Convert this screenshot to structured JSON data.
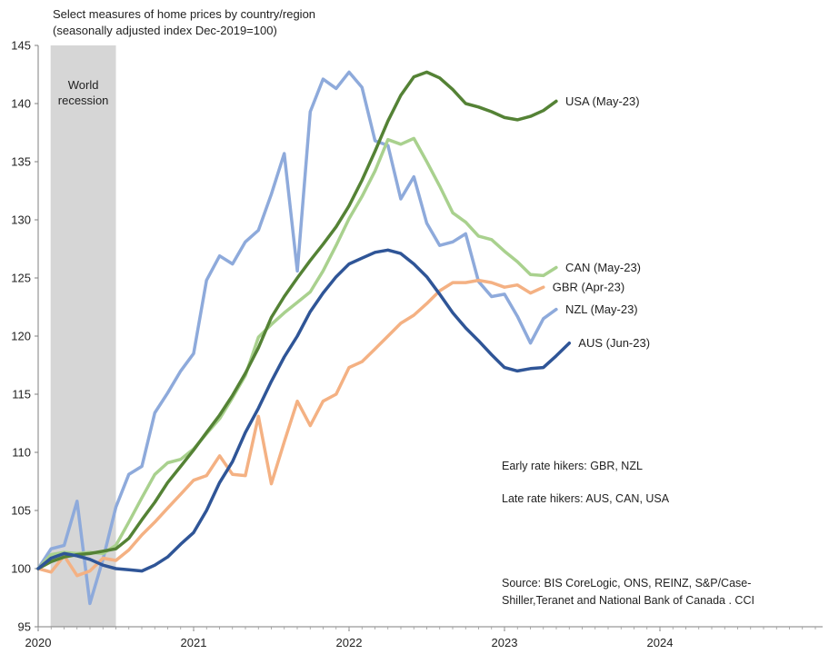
{
  "chart_data": {
    "type": "line",
    "title": "Select measures of home prices by country/region",
    "subtitle": "(seasonally adjusted index Dec-2019=100)",
    "xlabel": "",
    "ylabel": "",
    "xlim": [
      2020,
      2025
    ],
    "ylim": [
      95,
      145
    ],
    "y_ticks": [
      95,
      100,
      105,
      110,
      115,
      120,
      125,
      130,
      135,
      140,
      145
    ],
    "x_ticks": [
      {
        "value": 2020,
        "label": "2020"
      },
      {
        "value": 2021,
        "label": "2021"
      },
      {
        "value": 2022,
        "label": "2022"
      },
      {
        "value": 2023,
        "label": "2023"
      },
      {
        "value": 2024,
        "label": "2024"
      }
    ],
    "shaded_region": {
      "label_line1": "World",
      "label_line2": "recession",
      "x_start": 2020.08,
      "x_end": 2020.5,
      "color": "#d6d6d6"
    },
    "series": [
      {
        "name": "NZL (May-23)",
        "color": "#8eaadb",
        "x": [
          2020.0,
          2020.083,
          2020.167,
          2020.25,
          2020.333,
          2020.417,
          2020.5,
          2020.583,
          2020.667,
          2020.75,
          2020.833,
          2020.917,
          2021.0,
          2021.083,
          2021.167,
          2021.25,
          2021.333,
          2021.417,
          2021.5,
          2021.583,
          2021.667,
          2021.75,
          2021.833,
          2021.917,
          2022.0,
          2022.083,
          2022.167,
          2022.25,
          2022.333,
          2022.417,
          2022.5,
          2022.583,
          2022.667,
          2022.75,
          2022.833,
          2022.917,
          2023.0,
          2023.083,
          2023.167,
          2023.25,
          2023.333
        ],
        "values": [
          100.0,
          101.7,
          102.0,
          105.8,
          97.0,
          100.8,
          105.3,
          108.1,
          108.8,
          113.4,
          115.1,
          117.0,
          118.5,
          124.8,
          126.9,
          126.2,
          128.1,
          129.1,
          132.2,
          135.7,
          125.6,
          139.3,
          142.1,
          141.3,
          142.7,
          141.4,
          136.8,
          136.4,
          131.8,
          133.7,
          129.7,
          127.8,
          128.1,
          128.8,
          124.7,
          123.4,
          123.6,
          121.7,
          119.4,
          121.5,
          122.3
        ]
      },
      {
        "name": "GBR (Apr-23)",
        "color": "#f4b183",
        "x": [
          2020.0,
          2020.083,
          2020.167,
          2020.25,
          2020.333,
          2020.417,
          2020.5,
          2020.583,
          2020.667,
          2020.75,
          2020.833,
          2020.917,
          2021.0,
          2021.083,
          2021.167,
          2021.25,
          2021.333,
          2021.417,
          2021.5,
          2021.583,
          2021.667,
          2021.75,
          2021.833,
          2021.917,
          2022.0,
          2022.083,
          2022.167,
          2022.25,
          2022.333,
          2022.417,
          2022.5,
          2022.583,
          2022.667,
          2022.75,
          2022.833,
          2022.917,
          2023.0,
          2023.083,
          2023.167,
          2023.25
        ],
        "values": [
          100.0,
          99.7,
          101.1,
          99.4,
          99.8,
          100.9,
          100.7,
          101.6,
          102.9,
          104.0,
          105.2,
          106.4,
          107.6,
          108.0,
          109.7,
          108.1,
          108.0,
          113.1,
          107.3,
          110.9,
          114.4,
          112.3,
          114.4,
          115.0,
          117.3,
          117.8,
          118.9,
          120.0,
          121.1,
          121.8,
          122.8,
          123.9,
          124.6,
          124.6,
          124.8,
          124.6,
          124.2,
          124.4,
          123.7,
          124.2
        ]
      },
      {
        "name": "CAN (May-23)",
        "color": "#a9d18e",
        "x": [
          2020.0,
          2020.083,
          2020.167,
          2020.25,
          2020.333,
          2020.417,
          2020.5,
          2020.583,
          2020.667,
          2020.75,
          2020.833,
          2020.917,
          2021.0,
          2021.083,
          2021.167,
          2021.25,
          2021.333,
          2021.417,
          2021.5,
          2021.583,
          2021.667,
          2021.75,
          2021.833,
          2021.917,
          2022.0,
          2022.083,
          2022.167,
          2022.25,
          2022.333,
          2022.417,
          2022.5,
          2022.583,
          2022.667,
          2022.75,
          2022.833,
          2022.917,
          2023.0,
          2023.083,
          2023.167,
          2023.25,
          2023.333
        ],
        "values": [
          100.0,
          101.2,
          101.4,
          101.3,
          101.4,
          101.3,
          102.0,
          104.0,
          106.1,
          108.1,
          109.1,
          109.4,
          110.3,
          111.6,
          112.9,
          114.7,
          116.6,
          119.9,
          121.0,
          122.0,
          122.9,
          123.8,
          125.6,
          127.8,
          130.1,
          132.0,
          134.2,
          136.9,
          136.5,
          137.0,
          135.0,
          132.9,
          130.6,
          129.8,
          128.6,
          128.3,
          127.3,
          126.4,
          125.3,
          125.2,
          125.9
        ]
      },
      {
        "name": "USA (May-23)",
        "color": "#548235",
        "x": [
          2020.0,
          2020.083,
          2020.167,
          2020.25,
          2020.333,
          2020.417,
          2020.5,
          2020.583,
          2020.667,
          2020.75,
          2020.833,
          2020.917,
          2021.0,
          2021.083,
          2021.167,
          2021.25,
          2021.333,
          2021.417,
          2021.5,
          2021.583,
          2021.667,
          2021.75,
          2021.833,
          2021.917,
          2022.0,
          2022.083,
          2022.167,
          2022.25,
          2022.333,
          2022.417,
          2022.5,
          2022.583,
          2022.667,
          2022.75,
          2022.833,
          2022.917,
          2023.0,
          2023.083,
          2023.167,
          2023.25,
          2023.333
        ],
        "values": [
          100.0,
          100.6,
          101.0,
          101.2,
          101.3,
          101.5,
          101.7,
          102.6,
          104.2,
          105.7,
          107.4,
          108.8,
          110.2,
          111.7,
          113.2,
          114.9,
          116.8,
          119.0,
          121.6,
          123.4,
          125.0,
          126.5,
          127.9,
          129.4,
          131.2,
          133.4,
          135.9,
          138.5,
          140.7,
          142.3,
          142.7,
          142.2,
          141.2,
          140.0,
          139.7,
          139.3,
          138.8,
          138.6,
          138.9,
          139.4,
          140.2
        ]
      },
      {
        "name": "AUS (Jun-23)",
        "color": "#2f5597",
        "x": [
          2020.0,
          2020.083,
          2020.167,
          2020.25,
          2020.333,
          2020.417,
          2020.5,
          2020.583,
          2020.667,
          2020.75,
          2020.833,
          2020.917,
          2021.0,
          2021.083,
          2021.167,
          2021.25,
          2021.333,
          2021.417,
          2021.5,
          2021.583,
          2021.667,
          2021.75,
          2021.833,
          2021.917,
          2022.0,
          2022.083,
          2022.167,
          2022.25,
          2022.333,
          2022.417,
          2022.5,
          2022.583,
          2022.667,
          2022.75,
          2022.833,
          2022.917,
          2023.0,
          2023.083,
          2023.167,
          2023.25,
          2023.333,
          2023.417
        ],
        "values": [
          100.0,
          100.9,
          101.3,
          101.1,
          100.8,
          100.3,
          100.0,
          99.9,
          99.8,
          100.3,
          101.0,
          102.1,
          103.1,
          105.0,
          107.4,
          109.2,
          111.7,
          113.8,
          116.1,
          118.2,
          120.0,
          122.1,
          123.7,
          125.1,
          126.2,
          126.7,
          127.2,
          127.4,
          127.1,
          126.2,
          125.1,
          123.6,
          122.0,
          120.7,
          119.6,
          118.4,
          117.3,
          117.0,
          117.2,
          117.3,
          118.3,
          119.4
        ]
      }
    ],
    "annotations": {
      "early_hikers": "Early rate hikers: GBR, NZL",
      "late_hikers": "Late rate hikers: AUS, CAN, USA",
      "source_line1": "Source: BIS CoreLogic, ONS, REINZ, S&P/Case-",
      "source_line2": "Shiller,Teranet and National Bank of Canada . CCI"
    }
  }
}
